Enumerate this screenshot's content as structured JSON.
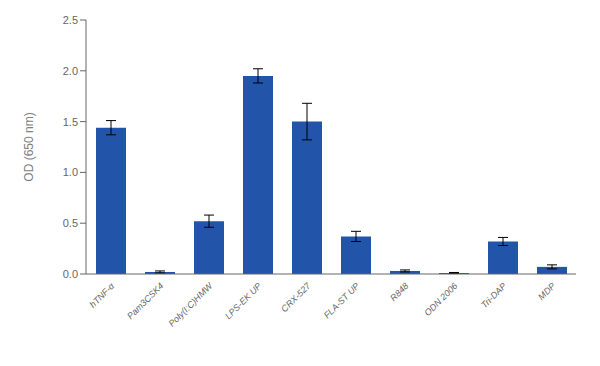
{
  "chart_data": {
    "type": "bar",
    "categories": [
      "hTNF-α",
      "Pam3CSK4",
      "Poly(I:C)HMW",
      "LPS-EK UP",
      "CRX-527",
      "FLA-ST UP",
      "R848",
      "ODN 2006",
      "Tri-DAP",
      "MDP"
    ],
    "values": [
      1.44,
      0.02,
      0.52,
      1.95,
      1.5,
      0.37,
      0.03,
      0.01,
      0.32,
      0.07
    ],
    "errors": [
      0.07,
      0.01,
      0.06,
      0.07,
      0.18,
      0.05,
      0.01,
      0.005,
      0.04,
      0.02
    ],
    "color": "#2255AA",
    "ylabel": "OD (650 nm)",
    "ylim": [
      0,
      2.5
    ],
    "yticks": [
      {
        "value": 0,
        "label": "0.0"
      },
      0.5,
      {
        "value": 1,
        "label": "1.0"
      },
      1.5,
      {
        "value": 2,
        "label": "2.0"
      },
      2.5
    ],
    "grid": false
  }
}
